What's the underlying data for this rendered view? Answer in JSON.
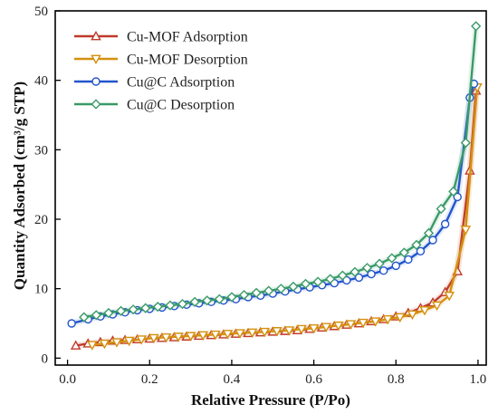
{
  "chart_data": {
    "type": "line",
    "xlabel": "Relative Pressure (P/Po)",
    "ylabel": "Quantity Adsorbed (cm³/g STP)",
    "xlim": [
      -0.03,
      1.02
    ],
    "ylim": [
      -1,
      50
    ],
    "xticks": [
      "0.0",
      "0.2",
      "0.4",
      "0.6",
      "0.8",
      "1.0"
    ],
    "xtick_values": [
      0,
      0.2,
      0.4,
      0.6,
      0.8,
      1.0
    ],
    "yticks": [
      "0",
      "10",
      "20",
      "30",
      "40",
      "50"
    ],
    "ytick_values": [
      0,
      10,
      20,
      30,
      40,
      50
    ],
    "grid": false,
    "legend_position": "top-left",
    "series": [
      {
        "name": "Cu-MOF Adsorption",
        "color": "#c0392b",
        "marker": "triangle-up",
        "x": [
          0.02,
          0.05,
          0.08,
          0.11,
          0.14,
          0.17,
          0.2,
          0.23,
          0.26,
          0.29,
          0.32,
          0.35,
          0.38,
          0.41,
          0.44,
          0.47,
          0.5,
          0.53,
          0.56,
          0.59,
          0.62,
          0.65,
          0.68,
          0.71,
          0.74,
          0.77,
          0.8,
          0.83,
          0.86,
          0.89,
          0.92,
          0.95,
          0.98,
          0.995
        ],
        "y": [
          1.8,
          2.1,
          2.3,
          2.5,
          2.6,
          2.7,
          2.8,
          2.9,
          3.0,
          3.1,
          3.2,
          3.3,
          3.4,
          3.5,
          3.6,
          3.7,
          3.8,
          3.9,
          4.0,
          4.2,
          4.4,
          4.6,
          4.8,
          5.0,
          5.3,
          5.6,
          6.0,
          6.5,
          7.2,
          8.0,
          9.5,
          12.5,
          27.0,
          38.5
        ]
      },
      {
        "name": "Cu-MOF Desorption",
        "color": "#d4900f",
        "marker": "triangle-down",
        "x": [
          0.998,
          0.97,
          0.93,
          0.9,
          0.87,
          0.84,
          0.81,
          0.78,
          0.75,
          0.72,
          0.69,
          0.66,
          0.63,
          0.6,
          0.57,
          0.54,
          0.51,
          0.48,
          0.45,
          0.42,
          0.39,
          0.36,
          0.33,
          0.3,
          0.27,
          0.24,
          0.21,
          0.18,
          0.15,
          0.12,
          0.09,
          0.06
        ],
        "y": [
          39.0,
          18.5,
          9.0,
          7.6,
          6.9,
          6.3,
          5.9,
          5.6,
          5.3,
          5.1,
          4.9,
          4.7,
          4.5,
          4.3,
          4.2,
          4.0,
          3.9,
          3.8,
          3.7,
          3.6,
          3.5,
          3.4,
          3.3,
          3.2,
          3.1,
          3.0,
          2.9,
          2.7,
          2.5,
          2.3,
          2.1,
          1.9
        ]
      },
      {
        "name": "Cu@C Adsorption",
        "color": "#2255cc",
        "marker": "circle",
        "x": [
          0.01,
          0.05,
          0.08,
          0.11,
          0.14,
          0.17,
          0.2,
          0.23,
          0.26,
          0.29,
          0.32,
          0.35,
          0.38,
          0.41,
          0.44,
          0.47,
          0.5,
          0.53,
          0.56,
          0.59,
          0.62,
          0.65,
          0.68,
          0.71,
          0.74,
          0.77,
          0.8,
          0.83,
          0.86,
          0.89,
          0.92,
          0.95,
          0.98,
          0.99
        ],
        "y": [
          5.0,
          5.6,
          6.0,
          6.3,
          6.6,
          6.9,
          7.1,
          7.3,
          7.5,
          7.7,
          7.9,
          8.1,
          8.3,
          8.5,
          8.8,
          9.0,
          9.3,
          9.6,
          9.9,
          10.2,
          10.5,
          10.8,
          11.2,
          11.6,
          12.1,
          12.6,
          13.3,
          14.2,
          15.4,
          17.0,
          19.3,
          23.2,
          37.5,
          39.5
        ]
      },
      {
        "name": "Cu@C Desorption",
        "color": "#3a9a68",
        "marker": "diamond",
        "x": [
          0.995,
          0.97,
          0.94,
          0.91,
          0.88,
          0.85,
          0.82,
          0.79,
          0.76,
          0.73,
          0.7,
          0.67,
          0.64,
          0.61,
          0.58,
          0.55,
          0.52,
          0.49,
          0.46,
          0.43,
          0.4,
          0.37,
          0.34,
          0.31,
          0.28,
          0.25,
          0.22,
          0.19,
          0.16,
          0.13,
          0.1,
          0.07,
          0.04
        ],
        "y": [
          47.8,
          31.0,
          24.0,
          21.5,
          18.0,
          16.3,
          15.2,
          14.4,
          13.6,
          13.0,
          12.4,
          11.9,
          11.4,
          11.0,
          10.7,
          10.3,
          10.0,
          9.7,
          9.4,
          9.1,
          8.8,
          8.5,
          8.3,
          8.1,
          7.8,
          7.6,
          7.4,
          7.2,
          7.0,
          6.8,
          6.5,
          6.2,
          5.9
        ]
      }
    ]
  }
}
